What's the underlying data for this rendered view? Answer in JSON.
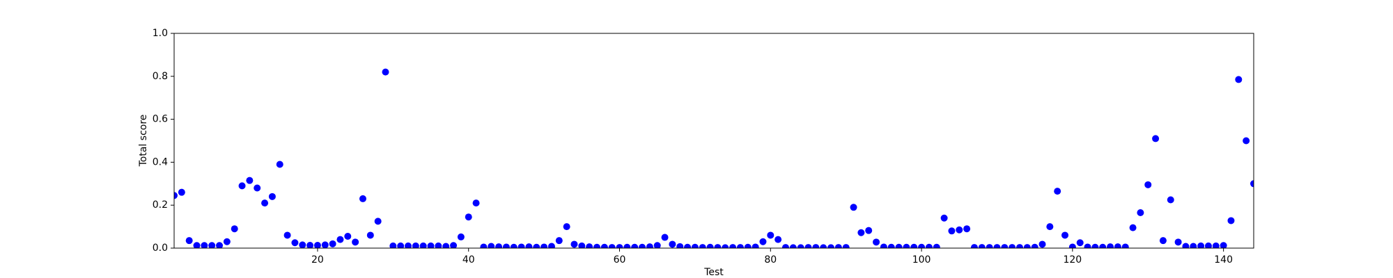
{
  "chart_data": {
    "type": "scatter",
    "xlabel": "Test",
    "ylabel": "Total score",
    "color": "#0000ff",
    "xlim": [
      1,
      144
    ],
    "ylim": [
      0,
      1
    ],
    "xticks": [
      20,
      40,
      60,
      80,
      100,
      120,
      140
    ],
    "yticks": [
      {
        "value": 0,
        "label": "0.0"
      },
      0.2,
      0.4,
      0.6,
      0.8,
      {
        "value": 1,
        "label": "1.0"
      }
    ],
    "x": [
      1,
      2,
      3,
      4,
      5,
      6,
      7,
      8,
      9,
      10,
      11,
      12,
      13,
      14,
      15,
      16,
      17,
      18,
      19,
      20,
      21,
      22,
      23,
      24,
      25,
      26,
      27,
      28,
      29,
      30,
      31,
      32,
      33,
      34,
      35,
      36,
      37,
      38,
      39,
      40,
      41,
      42,
      43,
      44,
      45,
      46,
      47,
      48,
      49,
      50,
      51,
      52,
      53,
      54,
      55,
      56,
      57,
      58,
      59,
      60,
      61,
      62,
      63,
      64,
      65,
      66,
      67,
      68,
      69,
      70,
      71,
      72,
      73,
      74,
      75,
      76,
      77,
      78,
      79,
      80,
      81,
      82,
      83,
      84,
      85,
      86,
      87,
      88,
      89,
      90,
      91,
      92,
      93,
      94,
      95,
      96,
      97,
      98,
      99,
      100,
      101,
      102,
      103,
      104,
      105,
      106,
      107,
      108,
      109,
      110,
      111,
      112,
      113,
      114,
      115,
      116,
      117,
      118,
      119,
      120,
      121,
      122,
      123,
      124,
      125,
      126,
      127,
      128,
      129,
      130,
      131,
      132,
      133,
      134,
      135,
      136,
      137,
      138,
      139,
      140,
      141,
      142,
      143,
      144
    ],
    "y": [
      0.245,
      0.26,
      0.035,
      0.012,
      0.012,
      0.012,
      0.012,
      0.03,
      0.09,
      0.29,
      0.315,
      0.28,
      0.21,
      0.24,
      0.39,
      0.06,
      0.025,
      0.015,
      0.013,
      0.013,
      0.015,
      0.02,
      0.04,
      0.055,
      0.028,
      0.23,
      0.06,
      0.125,
      0.82,
      0.01,
      0.01,
      0.01,
      0.01,
      0.01,
      0.01,
      0.01,
      0.008,
      0.012,
      0.052,
      0.145,
      0.21,
      0.005,
      0.008,
      0.006,
      0.005,
      0.004,
      0.005,
      0.006,
      0.004,
      0.005,
      0.008,
      0.035,
      0.1,
      0.018,
      0.01,
      0.006,
      0.004,
      0.004,
      0.003,
      0.003,
      0.004,
      0.004,
      0.004,
      0.006,
      0.012,
      0.05,
      0.018,
      0.007,
      0.004,
      0.004,
      0.003,
      0.004,
      0.003,
      0.002,
      0.003,
      0.003,
      0.004,
      0.005,
      0.03,
      0.06,
      0.04,
      0.003,
      0.002,
      0.002,
      0.003,
      0.003,
      0.002,
      0.002,
      0.003,
      0.003,
      0.19,
      0.072,
      0.082,
      0.028,
      0.005,
      0.004,
      0.004,
      0.004,
      0.004,
      0.004,
      0.004,
      0.004,
      0.14,
      0.08,
      0.085,
      0.09,
      0.003,
      0.003,
      0.003,
      0.003,
      0.003,
      0.003,
      0.003,
      0.003,
      0.004,
      0.018,
      0.1,
      0.265,
      0.06,
      0.005,
      0.025,
      0.005,
      0.004,
      0.004,
      0.006,
      0.006,
      0.005,
      0.095,
      0.165,
      0.295,
      0.51,
      0.035,
      0.225,
      0.028,
      0.008,
      0.008,
      0.01,
      0.01,
      0.01,
      0.012,
      0.128,
      0.785,
      0.5,
      0.3
    ]
  }
}
